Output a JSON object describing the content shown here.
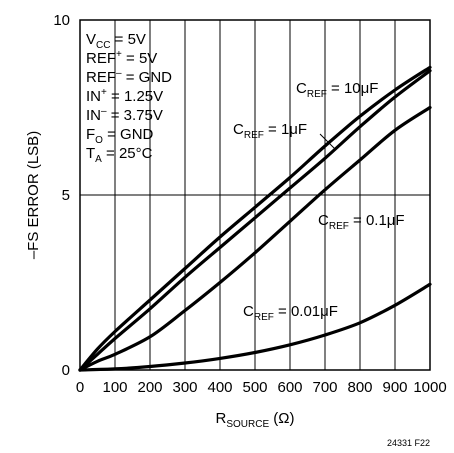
{
  "chart_data": {
    "type": "line",
    "xlabel": {
      "main": "R",
      "sub": "SOURCE",
      "unit": "(Ω)"
    },
    "ylabel": "–FS ERROR (LSB)",
    "xlim": [
      0,
      1000
    ],
    "ylim": [
      0,
      10
    ],
    "x_ticks": [
      0,
      100,
      200,
      300,
      400,
      500,
      600,
      700,
      800,
      900,
      1000
    ],
    "x_tick_labels": [
      "0",
      "100",
      "200",
      "300",
      "400",
      "500",
      "600",
      "700",
      "800",
      "900",
      "1000"
    ],
    "y_ticks": [
      0,
      5,
      10
    ],
    "y_tick_labels": [
      "0",
      "5",
      "10"
    ],
    "grid": {
      "vertical_lines_at_x": [
        100,
        200,
        300,
        400,
        500,
        600,
        700,
        800,
        900
      ],
      "horizontal_lines_at_y": [
        5
      ]
    },
    "conditions": [
      {
        "main": "V",
        "sub": "CC",
        "sup": "",
        "rest": " = 5V"
      },
      {
        "main": "REF",
        "sub": "",
        "sup": "+",
        "rest": " = 5V"
      },
      {
        "main": "REF",
        "sub": "",
        "sup": "–",
        "rest": " = GND"
      },
      {
        "main": "IN",
        "sub": "",
        "sup": "+",
        "rest": " = 1.25V"
      },
      {
        "main": "IN",
        "sub": "",
        "sup": "–",
        "rest": " = 3.75V"
      },
      {
        "main": "F",
        "sub": "O",
        "sup": "",
        "rest": " = GND"
      },
      {
        "main": "T",
        "sub": "A",
        "sup": "",
        "rest": " = 25°C"
      }
    ],
    "series": [
      {
        "label": {
          "main": "C",
          "sub": "REF",
          "rest": " = 10μF"
        },
        "x": [
          0,
          50,
          100,
          200,
          300,
          400,
          500,
          600,
          700,
          800,
          900,
          1000
        ],
        "y": [
          0,
          0.6,
          1.1,
          2.0,
          2.9,
          3.8,
          4.65,
          5.5,
          6.4,
          7.25,
          8.0,
          8.65
        ]
      },
      {
        "label": {
          "main": "C",
          "sub": "REF",
          "rest": " = 1μF"
        },
        "x": [
          0,
          50,
          100,
          200,
          300,
          400,
          500,
          600,
          700,
          800,
          900,
          1000
        ],
        "y": [
          0,
          0.45,
          0.9,
          1.75,
          2.65,
          3.5,
          4.35,
          5.2,
          6.05,
          6.95,
          7.8,
          8.55
        ]
      },
      {
        "label": {
          "main": "C",
          "sub": "REF",
          "rest": " = 0.1μF"
        },
        "x": [
          0,
          50,
          100,
          200,
          300,
          400,
          500,
          600,
          700,
          800,
          900,
          1000
        ],
        "y": [
          0,
          0.25,
          0.45,
          0.95,
          1.7,
          2.5,
          3.35,
          4.25,
          5.15,
          6.0,
          6.85,
          7.5
        ]
      },
      {
        "label": {
          "main": "C",
          "sub": "REF",
          "rest": " = 0.01μF"
        },
        "x": [
          0,
          100,
          200,
          300,
          400,
          500,
          600,
          700,
          800,
          900,
          1000
        ],
        "y": [
          0,
          0.03,
          0.1,
          0.2,
          0.33,
          0.5,
          0.72,
          1.0,
          1.35,
          1.85,
          2.45
        ]
      }
    ],
    "figure_id": "24331 F22"
  }
}
